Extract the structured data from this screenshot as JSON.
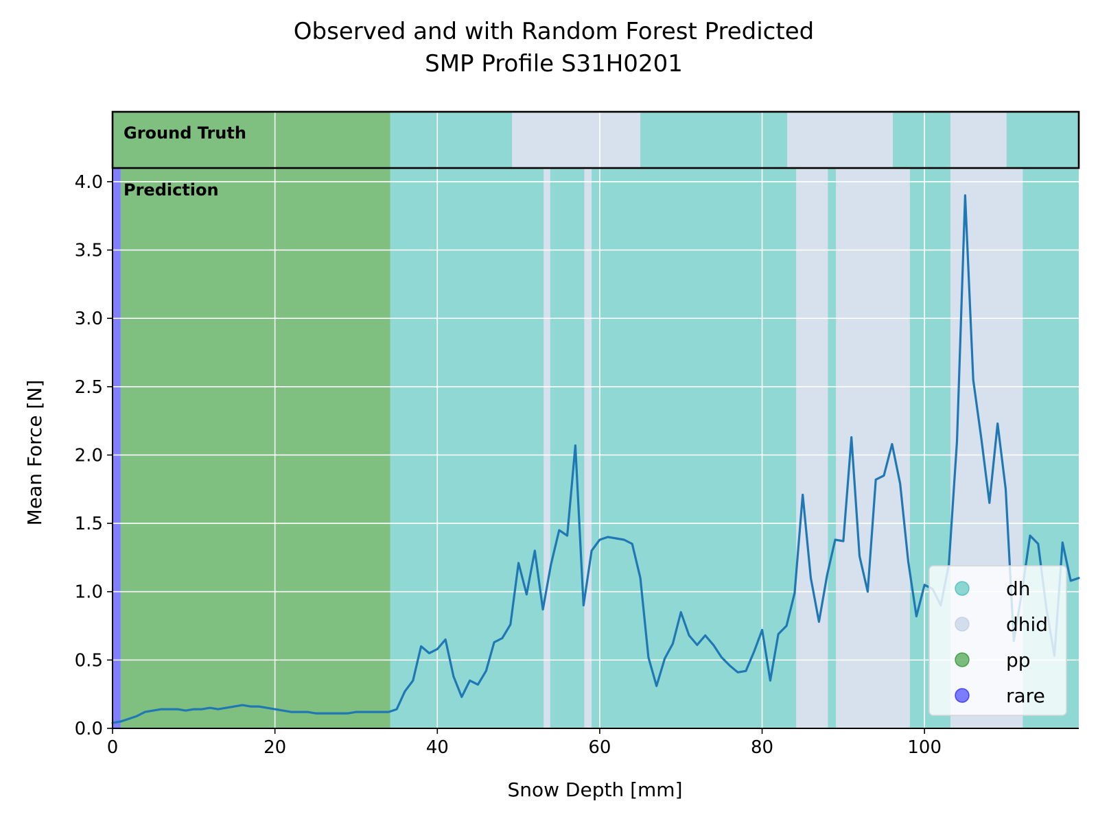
{
  "chart_data": {
    "type": "line",
    "title": "Observed and with Random Forest Predicted",
    "subtitle": "SMP Profile S31H0201",
    "xlabel": "Snow Depth [mm]",
    "ylabel": "Mean Force [N]",
    "xlim": [
      0,
      119
    ],
    "ylim": [
      0,
      4.1
    ],
    "xticks": [
      0,
      20,
      40,
      60,
      80,
      100
    ],
    "yticks": [
      0.0,
      0.5,
      1.0,
      1.5,
      2.0,
      2.5,
      3.0,
      3.5,
      4.0
    ],
    "xtick_labels": [
      "0",
      "20",
      "40",
      "60",
      "80",
      "100"
    ],
    "ytick_labels": [
      "0.0",
      "0.5",
      "1.0",
      "1.5",
      "2.0",
      "2.5",
      "3.0",
      "3.5",
      "4.0"
    ],
    "grid": true,
    "legend_position": "lower-right",
    "strip_labels": {
      "ground_truth": "Ground Truth",
      "prediction": "Prediction"
    },
    "classes": [
      {
        "name": "dh",
        "color": "#20b2aa"
      },
      {
        "name": "dhid",
        "color": "#b0c4de"
      },
      {
        "name": "pp",
        "color": "#008000"
      },
      {
        "name": "rare",
        "color": "#0000ff"
      }
    ],
    "line_color": "#1f77b4",
    "ground_truth_segments": [
      {
        "start": 0,
        "end": 34.2,
        "class": "pp"
      },
      {
        "start": 34.2,
        "end": 49.2,
        "class": "dh"
      },
      {
        "start": 49.2,
        "end": 65.0,
        "class": "dhid"
      },
      {
        "start": 65.0,
        "end": 83.1,
        "class": "dh"
      },
      {
        "start": 83.1,
        "end": 96.1,
        "class": "dhid"
      },
      {
        "start": 96.1,
        "end": 103.2,
        "class": "dh"
      },
      {
        "start": 103.2,
        "end": 110.1,
        "class": "dhid"
      },
      {
        "start": 110.1,
        "end": 119,
        "class": "dh"
      }
    ],
    "prediction_segments": [
      {
        "start": 0,
        "end": 1,
        "class": "rare"
      },
      {
        "start": 1,
        "end": 34.2,
        "class": "pp"
      },
      {
        "start": 34.2,
        "end": 53.1,
        "class": "dh"
      },
      {
        "start": 53.1,
        "end": 53.9,
        "class": "dhid"
      },
      {
        "start": 53.9,
        "end": 58.1,
        "class": "dh"
      },
      {
        "start": 58.1,
        "end": 59.0,
        "class": "dhid"
      },
      {
        "start": 59.0,
        "end": 84.2,
        "class": "dh"
      },
      {
        "start": 84.2,
        "end": 88.1,
        "class": "dhid"
      },
      {
        "start": 88.1,
        "end": 89.1,
        "class": "dh"
      },
      {
        "start": 89.1,
        "end": 98.2,
        "class": "dhid"
      },
      {
        "start": 98.2,
        "end": 103.2,
        "class": "dh"
      },
      {
        "start": 103.2,
        "end": 112.1,
        "class": "dhid"
      },
      {
        "start": 112.1,
        "end": 119,
        "class": "dh"
      }
    ],
    "series": [
      {
        "x": [
          0,
          1,
          2,
          3,
          4,
          5,
          6,
          7,
          8,
          9,
          10,
          11,
          12,
          13,
          14,
          15,
          16,
          17,
          18,
          19,
          20,
          21,
          22,
          23,
          24,
          25,
          26,
          27,
          28,
          29,
          30,
          31,
          32,
          33,
          34,
          35,
          36,
          37,
          38,
          39,
          40,
          41,
          42,
          43,
          44,
          45,
          46,
          47,
          48,
          49,
          50,
          51,
          52,
          53,
          54,
          55,
          56,
          57,
          58,
          59,
          60,
          61,
          62,
          63,
          64,
          65,
          66,
          67,
          68,
          69,
          70,
          71,
          72,
          73,
          74,
          75,
          76,
          77,
          78,
          79,
          80,
          81,
          82,
          83,
          84,
          85,
          86,
          87,
          88,
          89,
          90,
          91,
          92,
          93,
          94,
          95,
          96,
          97,
          98,
          99,
          100,
          101,
          102,
          103,
          104,
          105,
          106,
          107,
          108,
          109,
          110,
          111,
          112,
          113,
          114,
          115,
          116,
          117,
          118,
          119
        ],
        "y": [
          0.04,
          0.05,
          0.07,
          0.09,
          0.12,
          0.13,
          0.14,
          0.14,
          0.14,
          0.13,
          0.14,
          0.14,
          0.15,
          0.14,
          0.15,
          0.16,
          0.17,
          0.16,
          0.16,
          0.15,
          0.14,
          0.13,
          0.12,
          0.12,
          0.12,
          0.11,
          0.11,
          0.11,
          0.11,
          0.11,
          0.12,
          0.12,
          0.12,
          0.12,
          0.12,
          0.14,
          0.27,
          0.35,
          0.6,
          0.55,
          0.58,
          0.65,
          0.38,
          0.23,
          0.35,
          0.32,
          0.42,
          0.63,
          0.66,
          0.76,
          1.21,
          0.98,
          1.3,
          0.87,
          1.2,
          1.45,
          1.41,
          2.07,
          0.9,
          1.3,
          1.38,
          1.4,
          1.39,
          1.38,
          1.35,
          1.1,
          0.52,
          0.31,
          0.51,
          0.62,
          0.85,
          0.68,
          0.61,
          0.68,
          0.61,
          0.52,
          0.46,
          0.41,
          0.42,
          0.56,
          0.72,
          0.35,
          0.69,
          0.75,
          0.99,
          1.71,
          1.1,
          0.78,
          1.12,
          1.38,
          1.37,
          2.13,
          1.26,
          1.0,
          1.82,
          1.85,
          2.08,
          1.79,
          1.22,
          0.82,
          1.05,
          1.02,
          0.9,
          1.2,
          2.1,
          3.9,
          2.55,
          2.12,
          1.65,
          2.23,
          1.75,
          0.64,
          1.0,
          1.41,
          1.35,
          0.88,
          0.53,
          1.36,
          1.08,
          1.1
        ]
      }
    ]
  }
}
